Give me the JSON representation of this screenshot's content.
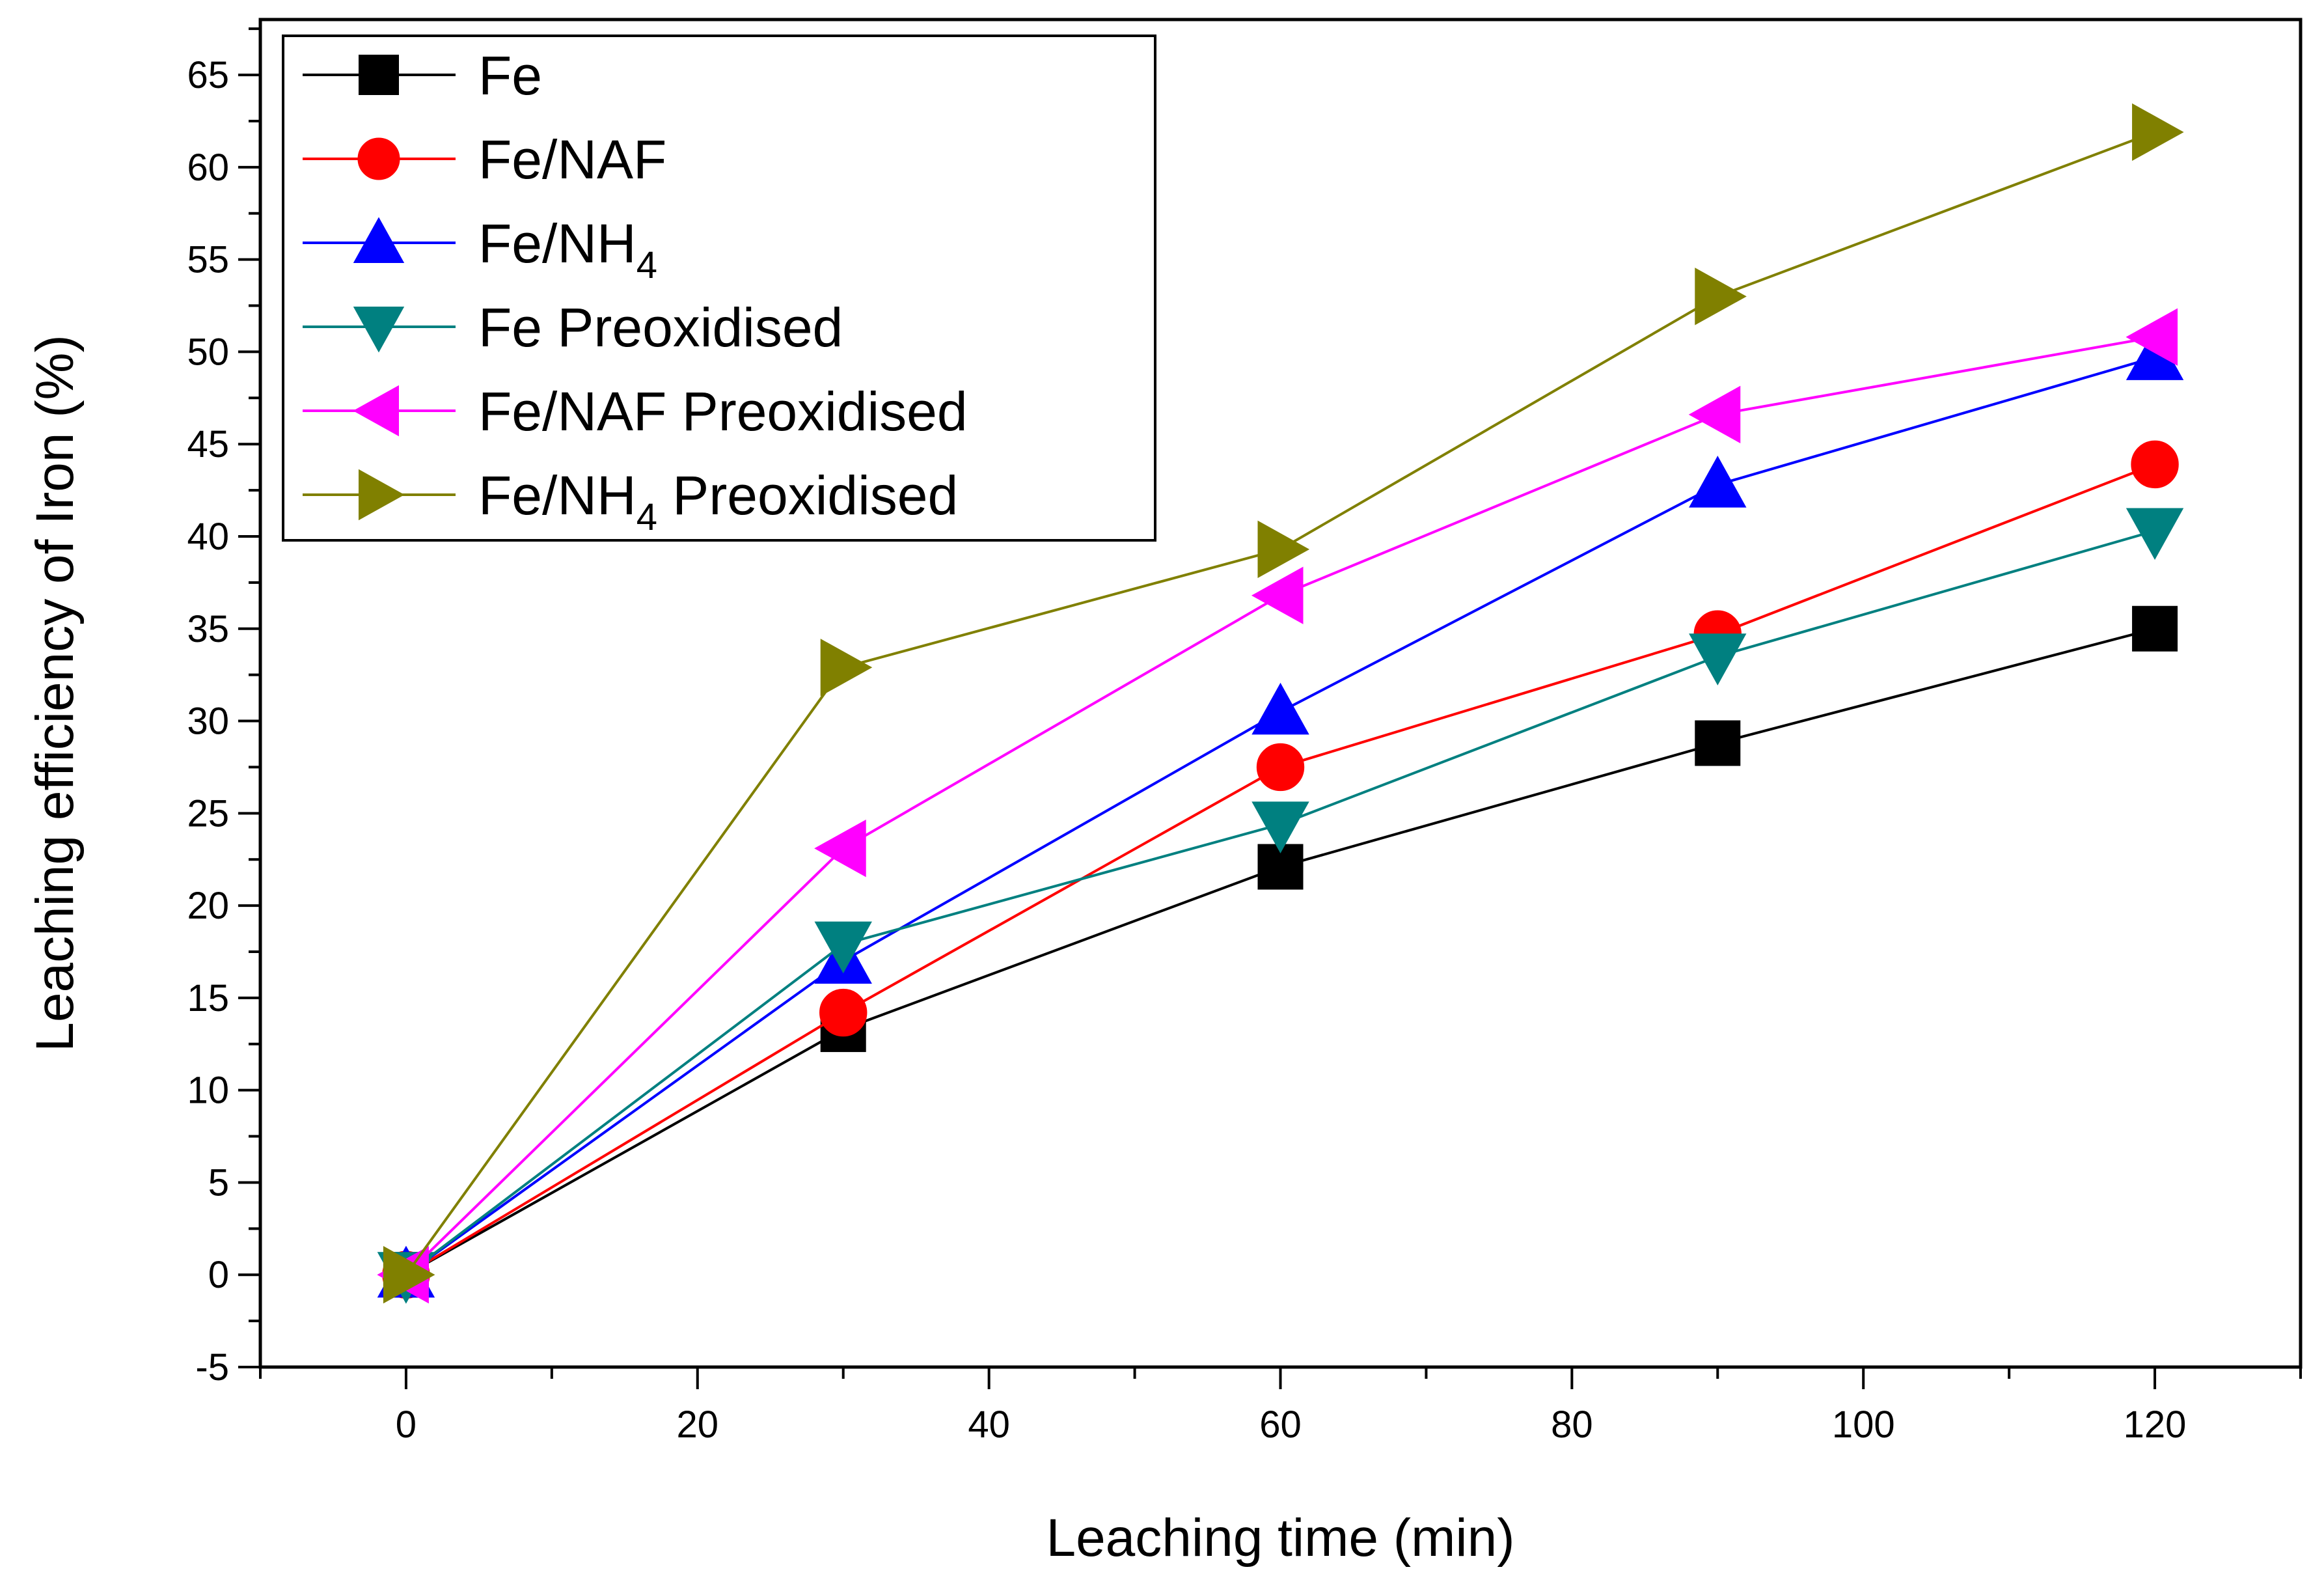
{
  "chart_data": {
    "type": "line",
    "title": "",
    "xlabel": "Leaching time (min)",
    "ylabel": "Leaching efficiency of Iron (%)",
    "xlim": [
      -10,
      130
    ],
    "ylim": [
      -5,
      68
    ],
    "x_ticks": [
      0,
      20,
      40,
      60,
      80,
      100,
      120
    ],
    "y_ticks": [
      -5,
      0,
      5,
      10,
      15,
      20,
      25,
      30,
      35,
      40,
      45,
      50,
      55,
      60,
      65
    ],
    "x_tick_labels": [
      "0",
      "20",
      "40",
      "60",
      "80",
      "100",
      "120"
    ],
    "y_tick_labels": [
      "-5",
      "0",
      "5",
      "10",
      "15",
      "20",
      "25",
      "30",
      "35",
      "40",
      "45",
      "50",
      "55",
      "60",
      "65"
    ],
    "grid": false,
    "legend_position": "top-left",
    "x": [
      0,
      30,
      60,
      90,
      120
    ],
    "series": [
      {
        "name": "Fe",
        "label_main": "Fe",
        "label_sub": "",
        "label_tail": "",
        "color": "#000000",
        "marker": "square",
        "values": [
          0,
          13.3,
          22.1,
          28.8,
          35.0
        ]
      },
      {
        "name": "Fe/NAF",
        "label_main": "Fe/NAF",
        "label_sub": "",
        "label_tail": "",
        "color": "#ff0000",
        "marker": "circle",
        "values": [
          0,
          14.2,
          27.5,
          34.7,
          43.9
        ]
      },
      {
        "name": "Fe/NH4",
        "label_main": "Fe/NH",
        "label_sub": "4",
        "label_tail": "",
        "color": "#0000ff",
        "marker": "triangle-up",
        "values": [
          0,
          17.0,
          30.5,
          42.8,
          49.7
        ]
      },
      {
        "name": "Fe Preoxidised",
        "label_main": "Fe Preoxidised",
        "label_sub": "",
        "label_tail": "",
        "color": "#008080",
        "marker": "triangle-down",
        "values": [
          0,
          17.9,
          24.4,
          33.5,
          40.3
        ]
      },
      {
        "name": "Fe/NAF Preoxidised",
        "label_main": "Fe/NAF Preoxidised",
        "label_sub": "",
        "label_tail": "",
        "color": "#ff00ff",
        "marker": "triangle-left",
        "values": [
          0,
          23.1,
          36.8,
          46.6,
          50.8
        ]
      },
      {
        "name": "Fe/NH4 Preoxidised",
        "label_main": "Fe/NH",
        "label_sub": "4",
        "label_tail": " Preoxidised",
        "color": "#808000",
        "marker": "triangle-right",
        "values": [
          0,
          32.9,
          39.3,
          53.0,
          61.9
        ]
      }
    ]
  }
}
